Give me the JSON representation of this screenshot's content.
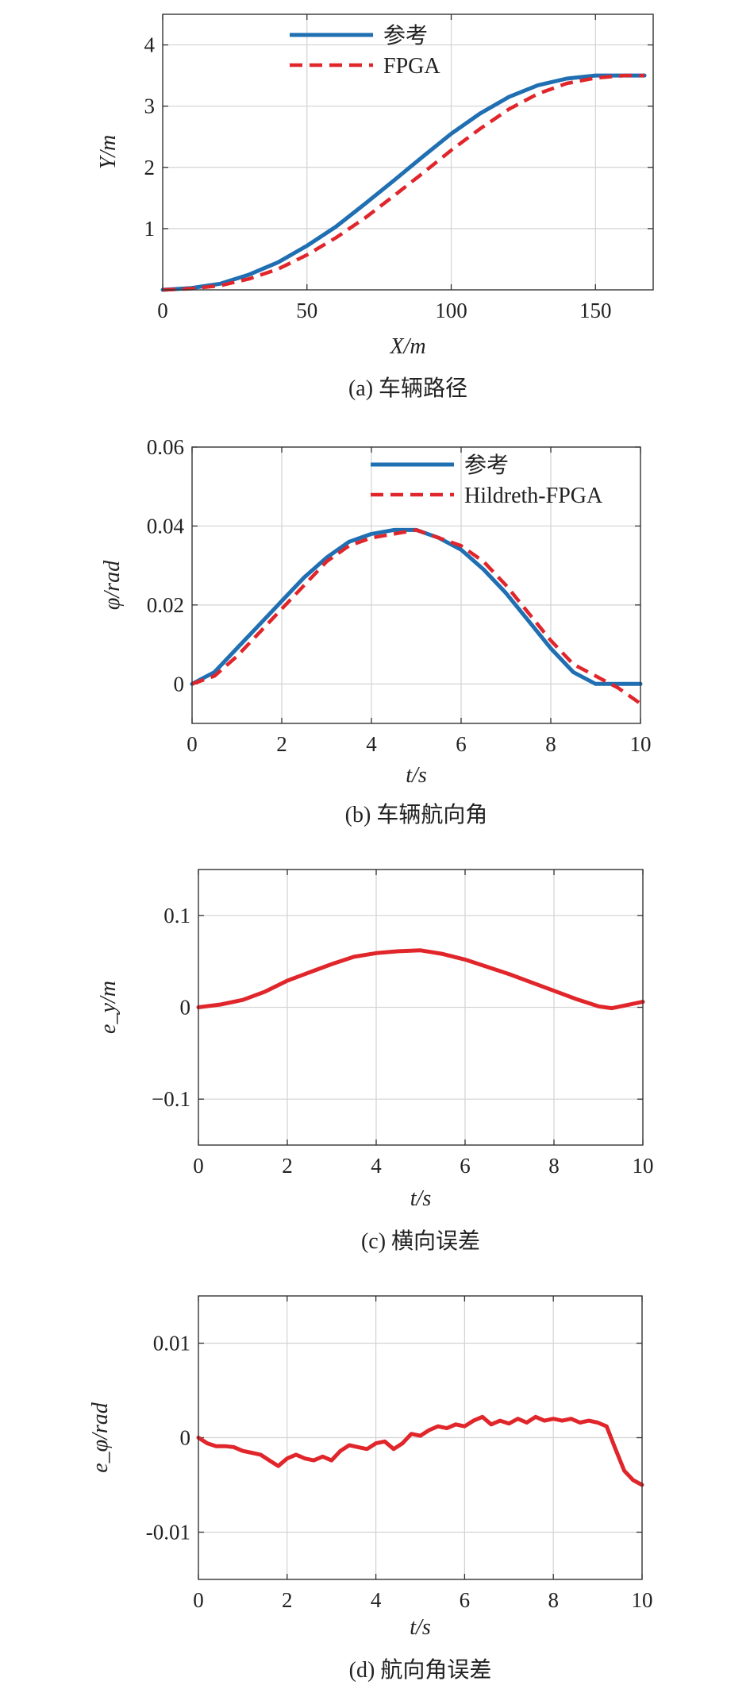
{
  "chart_data": [
    {
      "type": "line",
      "caption": "(a) 车辆路径",
      "xlabel": "X/m",
      "ylabel": "Y/m",
      "xlim": [
        0,
        170
      ],
      "ylim": [
        0,
        4.5
      ],
      "xticks": [
        0,
        50,
        100,
        150
      ],
      "yticks": [
        1,
        2,
        3,
        4
      ],
      "grid": true,
      "legend_position": "top-center",
      "series": [
        {
          "name": "参考",
          "color": "#1f6fb2",
          "style": "solid",
          "x": [
            0,
            10,
            20,
            30,
            40,
            50,
            60,
            70,
            80,
            90,
            100,
            110,
            120,
            130,
            140,
            150,
            160,
            167
          ],
          "y": [
            0,
            0.03,
            0.1,
            0.25,
            0.45,
            0.72,
            1.03,
            1.4,
            1.78,
            2.17,
            2.55,
            2.88,
            3.15,
            3.34,
            3.45,
            3.5,
            3.5,
            3.5
          ]
        },
        {
          "name": "FPGA",
          "color": "#e0262b",
          "style": "dashed",
          "x": [
            0,
            10,
            20,
            30,
            40,
            50,
            60,
            70,
            80,
            90,
            100,
            110,
            120,
            130,
            140,
            150,
            160,
            167
          ],
          "y": [
            0,
            0.02,
            0.07,
            0.18,
            0.34,
            0.57,
            0.85,
            1.17,
            1.53,
            1.9,
            2.28,
            2.63,
            2.95,
            3.2,
            3.37,
            3.46,
            3.5,
            3.5
          ]
        }
      ]
    },
    {
      "type": "line",
      "caption": "(b) 车辆航向角",
      "xlabel": "t/s",
      "ylabel": "φ/rad",
      "xlim": [
        0,
        10
      ],
      "ylim": [
        -0.01,
        0.06
      ],
      "xticks": [
        0,
        2,
        4,
        6,
        8,
        10
      ],
      "yticks": [
        0,
        0.02,
        0.04,
        0.06
      ],
      "ytick_labels": [
        "0",
        "0.02",
        "0.04",
        "0.06"
      ],
      "grid": true,
      "legend_position": "top-right",
      "series": [
        {
          "name": "参考",
          "color": "#1f6fb2",
          "style": "solid",
          "x": [
            0,
            0.5,
            1,
            1.5,
            2,
            2.5,
            3,
            3.5,
            4,
            4.5,
            5,
            5.5,
            6,
            6.5,
            7,
            7.5,
            8,
            8.5,
            9,
            9.5,
            10
          ],
          "y": [
            0,
            0.003,
            0.009,
            0.015,
            0.021,
            0.027,
            0.032,
            0.036,
            0.038,
            0.039,
            0.039,
            0.037,
            0.034,
            0.029,
            0.023,
            0.016,
            0.009,
            0.003,
            0.0,
            0.0,
            0.0
          ]
        },
        {
          "name": "Hildreth-FPGA",
          "color": "#e0262b",
          "style": "dashed",
          "x": [
            0,
            0.5,
            1,
            1.5,
            2,
            2.5,
            3,
            3.5,
            4,
            4.5,
            5,
            5.5,
            6,
            6.5,
            7,
            7.5,
            8,
            8.5,
            9,
            9.5,
            10
          ],
          "y": [
            0,
            0.002,
            0.007,
            0.013,
            0.019,
            0.025,
            0.031,
            0.035,
            0.037,
            0.038,
            0.039,
            0.037,
            0.035,
            0.031,
            0.025,
            0.018,
            0.011,
            0.005,
            0.002,
            -0.001,
            -0.005
          ]
        }
      ]
    },
    {
      "type": "line",
      "caption": "(c) 横向误差",
      "xlabel": "t/s",
      "ylabel": "e_y/m",
      "xlim": [
        0,
        10
      ],
      "ylim": [
        -0.15,
        0.15
      ],
      "xticks": [
        0,
        2,
        4,
        6,
        8,
        10
      ],
      "yticks": [
        -0.1,
        0,
        0.1
      ],
      "ytick_labels": [
        "−0.1",
        "0",
        "0.1"
      ],
      "grid": true,
      "series": [
        {
          "color": "#e0262b",
          "style": "solid",
          "x": [
            0,
            0.5,
            1,
            1.5,
            2,
            2.5,
            3,
            3.5,
            4,
            4.5,
            5,
            5.5,
            6,
            6.5,
            7,
            7.5,
            8,
            8.5,
            9,
            9.3,
            9.6,
            10
          ],
          "y": [
            0,
            0.003,
            0.008,
            0.017,
            0.029,
            0.038,
            0.047,
            0.055,
            0.059,
            0.061,
            0.062,
            0.058,
            0.052,
            0.044,
            0.036,
            0.027,
            0.018,
            0.009,
            0.001,
            -0.001,
            0.002,
            0.006
          ]
        }
      ]
    },
    {
      "type": "line",
      "caption": "(d) 航向角误差",
      "xlabel": "t/s",
      "ylabel": "e_φ/rad",
      "xlim": [
        0,
        10
      ],
      "ylim": [
        -0.015,
        0.015
      ],
      "xticks": [
        0,
        2,
        4,
        6,
        8,
        10
      ],
      "yticks": [
        -0.01,
        0,
        0.01
      ],
      "ytick_labels": [
        "-0.01",
        "0",
        "0.01"
      ],
      "grid": true,
      "series": [
        {
          "color": "#e0262b",
          "style": "solid",
          "x": [
            0,
            0.2,
            0.4,
            0.6,
            0.8,
            1.0,
            1.2,
            1.4,
            1.6,
            1.8,
            2.0,
            2.2,
            2.4,
            2.6,
            2.8,
            3.0,
            3.2,
            3.4,
            3.6,
            3.8,
            4.0,
            4.2,
            4.4,
            4.6,
            4.8,
            5.0,
            5.2,
            5.4,
            5.6,
            5.8,
            6.0,
            6.2,
            6.4,
            6.6,
            6.8,
            7.0,
            7.2,
            7.4,
            7.6,
            7.8,
            8.0,
            8.2,
            8.4,
            8.6,
            8.8,
            9.0,
            9.2,
            9.4,
            9.6,
            9.8,
            10.0
          ],
          "y": [
            0.0,
            -0.0006,
            -0.0009,
            -0.0009,
            -0.001,
            -0.0014,
            -0.0016,
            -0.0018,
            -0.0024,
            -0.003,
            -0.0022,
            -0.0018,
            -0.0022,
            -0.0024,
            -0.002,
            -0.0024,
            -0.0014,
            -0.0008,
            -0.001,
            -0.0012,
            -0.0006,
            -0.0004,
            -0.0012,
            -0.0006,
            0.0004,
            0.0002,
            0.0008,
            0.0012,
            0.001,
            0.0014,
            0.0012,
            0.0018,
            0.0022,
            0.0014,
            0.0018,
            0.0015,
            0.002,
            0.0016,
            0.0022,
            0.0018,
            0.002,
            0.0018,
            0.002,
            0.0016,
            0.0018,
            0.0016,
            0.0012,
            -0.0012,
            -0.0035,
            -0.0045,
            -0.005
          ]
        }
      ]
    }
  ]
}
